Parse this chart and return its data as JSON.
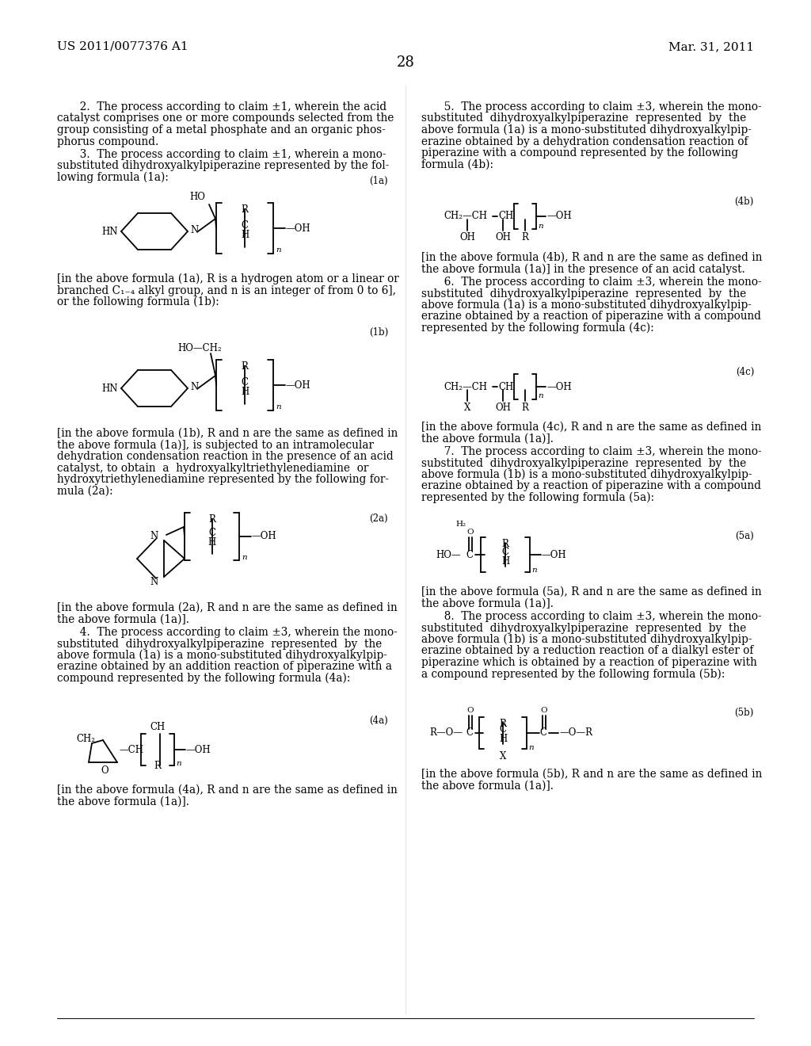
{
  "page_header_left": "US 2011/0077376 A1",
  "page_header_right": "Mar. 31, 2011",
  "page_number": "28",
  "background_color": "#ffffff",
  "text_color": "#000000"
}
